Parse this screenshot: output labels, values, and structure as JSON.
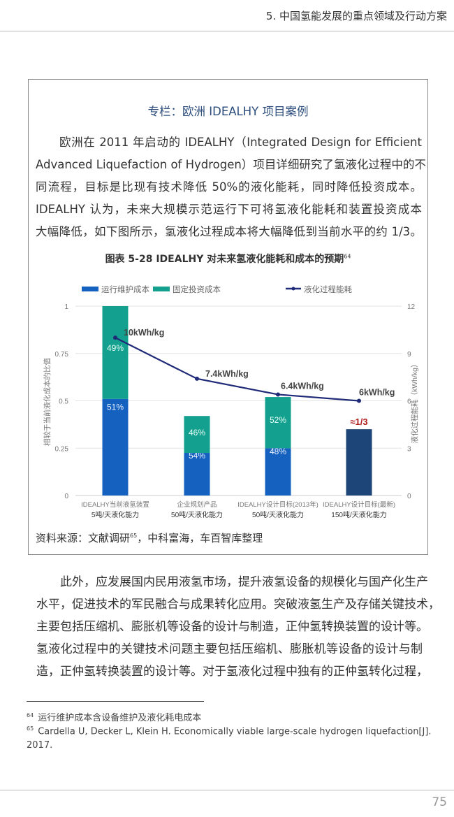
{
  "header": {
    "title": "5. 中国氢能发展的重点领域及行动方案"
  },
  "box": {
    "title": "专栏：欧洲 IDEALHY 项目案例",
    "lines": [
      "欧洲在 2011 年启动的 IDEALHY（Integrated Design for Efficient",
      "Advanced Liquefaction of Hydrogen）项目详细研究了氢液化过程中的不",
      "同流程，目标是比现有技术降低 50%的液化能耗，同时降低投资成本。",
      "IDEALHY 认为，未来大规模示范运行下可将氢液化能耗和装置投资成本",
      "大幅降低，如下图所示，氢液化过程成本将大幅降低到当前水平的约 1/3。"
    ],
    "chart_title": "图表 5-28 IDEALHY 对未来氢液化能耗和成本的预期",
    "chart_title_ref": "64",
    "source": "资料来源：文献调研",
    "source_ref": "65",
    "source_rest": "，中科富海，车百智库整理"
  },
  "chart_data": {
    "type": "bar",
    "stacked": true,
    "categories": [
      {
        "line1": "IDEALHY当前液氢装置",
        "line2": "5吨/天液化能力"
      },
      {
        "line1": "企业规划产品",
        "line2": "50吨/天液化能力"
      },
      {
        "line1": "IDEALHY设计目标(2013年)",
        "line2": "50吨/天液化能力"
      },
      {
        "line1": "IDEALHY设计目标(最新)",
        "line2": "150吨/天液化能力"
      }
    ],
    "series": [
      {
        "name": "运行维护成本",
        "color": "#1561c0",
        "values": [
          0.51,
          0.225,
          0.25,
          null
        ],
        "labels": [
          "51%",
          "54%",
          "48%",
          ""
        ]
      },
      {
        "name": "固定投资成本",
        "color": "#14a08e",
        "values": [
          0.49,
          0.195,
          0.27,
          null
        ],
        "labels": [
          "49%",
          "46%",
          "52%",
          ""
        ]
      },
      {
        "name": "液化过程能耗",
        "type": "line",
        "axis": "right",
        "color": "#1f2a78",
        "values": [
          10,
          7.4,
          6.4,
          6
        ],
        "labels": [
          "10kWh/kg",
          "7.4kWh/kg",
          "6.4kWh/kg",
          "6kWh/kg"
        ]
      }
    ],
    "total_only": {
      "values": [
        null,
        null,
        null,
        0.35
      ],
      "color": "#1d4577",
      "label": "≈1/3",
      "label_color": "#b01c1c"
    },
    "ylabel": "相较于当前液化成本的比值",
    "ylabel_right": "液化过程能耗（kWh/kg）",
    "ylim": [
      0,
      1
    ],
    "ylim_right": [
      0,
      12
    ],
    "yticks": [
      "0",
      "0.25",
      "0.5",
      "0.75",
      "1"
    ],
    "yticks_right": [
      "0",
      "3",
      "6",
      "9",
      "12"
    ],
    "grid": true,
    "legend": "top"
  },
  "body": {
    "lines": [
      "此外，应发展国内民用液氢市场，提升液氢设备的规模化与国产化生产",
      "水平，促进技术的军民融合与成果转化应用。突破液氢生产及存储关键技术，",
      "主要包括压缩机、膨胀机等设备的设计与制造，正仲氢转换装置的设计等。",
      "氢液化过程中的关键技术问题主要包括压缩机、膨胀机等设备的设计与制",
      "造，正仲氢转换装置的设计等。对于氢液化过程中独有的正仲氢转化过程，"
    ]
  },
  "footnotes": [
    {
      "ref": "64",
      "text": "运行维护成本含设备维护及液化耗电成本"
    },
    {
      "ref": "65",
      "text": "Cardella U, Decker L, Klein H. Economically viable large-scale hydrogen liquefaction[J].",
      "text2": "2017."
    }
  ],
  "page_number": "75"
}
